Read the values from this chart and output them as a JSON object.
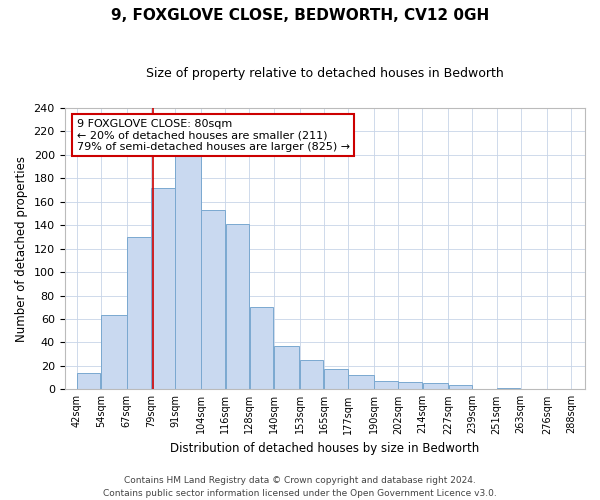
{
  "title": "9, FOXGLOVE CLOSE, BEDWORTH, CV12 0GH",
  "subtitle": "Size of property relative to detached houses in Bedworth",
  "xlabel": "Distribution of detached houses by size in Bedworth",
  "ylabel": "Number of detached properties",
  "bar_left_edges": [
    42,
    54,
    67,
    79,
    91,
    104,
    116,
    128,
    140,
    153,
    165,
    177,
    190,
    202,
    214,
    227,
    239,
    251,
    263,
    276
  ],
  "bar_widths": [
    12,
    13,
    12,
    12,
    13,
    12,
    12,
    12,
    13,
    12,
    12,
    13,
    12,
    12,
    13,
    12,
    12,
    12,
    13,
    12
  ],
  "bar_heights": [
    14,
    63,
    130,
    172,
    200,
    153,
    141,
    70,
    37,
    25,
    17,
    12,
    7,
    6,
    5,
    4,
    0,
    1,
    0,
    0
  ],
  "tick_labels": [
    "42sqm",
    "54sqm",
    "67sqm",
    "79sqm",
    "91sqm",
    "104sqm",
    "116sqm",
    "128sqm",
    "140sqm",
    "153sqm",
    "165sqm",
    "177sqm",
    "190sqm",
    "202sqm",
    "214sqm",
    "227sqm",
    "239sqm",
    "251sqm",
    "263sqm",
    "276sqm",
    "288sqm"
  ],
  "bar_color": "#c9d9f0",
  "bar_edge_color": "#7aa8d0",
  "annotation_line1": "9 FOXGLOVE CLOSE: 80sqm",
  "annotation_line2": "← 20% of detached houses are smaller (211)",
  "annotation_line3": "79% of semi-detached houses are larger (825) →",
  "annotation_box_color": "#ffffff",
  "annotation_box_edge_color": "#cc0000",
  "red_line_x": 80,
  "xlim_left": 36,
  "xlim_right": 295,
  "ylim": [
    0,
    240
  ],
  "yticks": [
    0,
    20,
    40,
    60,
    80,
    100,
    120,
    140,
    160,
    180,
    200,
    220,
    240
  ],
  "footer_line1": "Contains HM Land Registry data © Crown copyright and database right 2024.",
  "footer_line2": "Contains public sector information licensed under the Open Government Licence v3.0.",
  "background_color": "#ffffff",
  "grid_color": "#c8d4e8"
}
